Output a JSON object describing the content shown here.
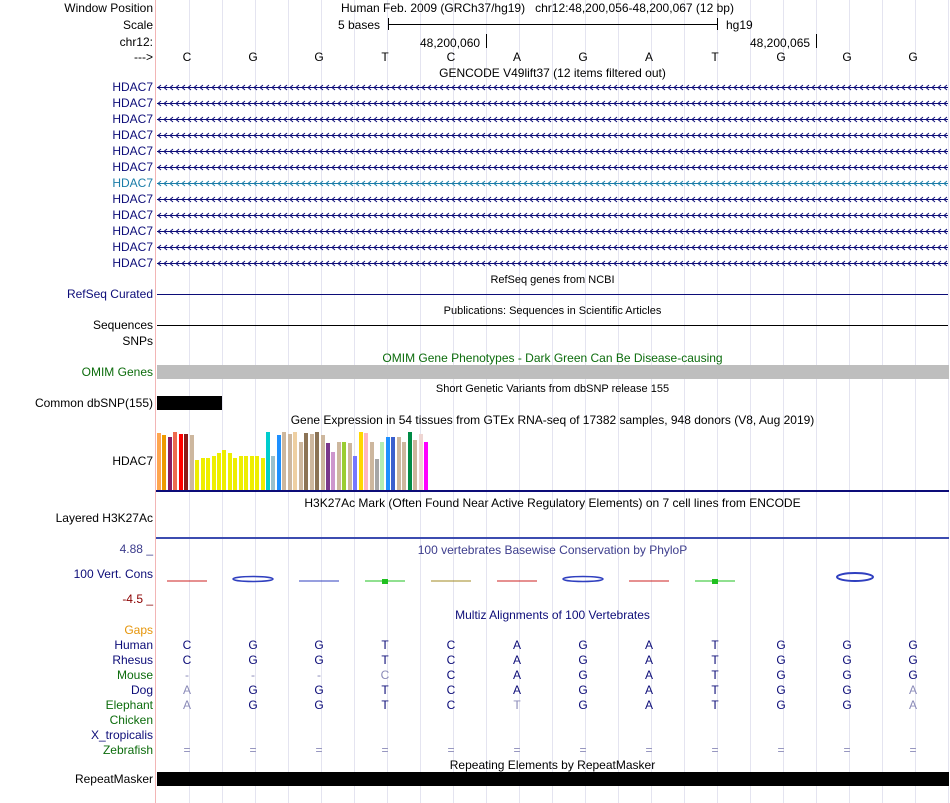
{
  "header": {
    "window_position_label": "Window Position",
    "assembly": "Human Feb. 2009 (GRCh37/hg19)",
    "position": "chr12:48,200,056-48,200,067 (12 bp)",
    "scale_label": "Scale",
    "scale_text": "5 bases",
    "scale_db": "hg19",
    "chrom_label": "chr12:",
    "coord_left": "48,200,060",
    "coord_right": "48,200,065",
    "strand_label": "--->",
    "bases": [
      "C",
      "G",
      "G",
      "T",
      "C",
      "A",
      "G",
      "A",
      "T",
      "G",
      "G",
      "G"
    ]
  },
  "gencode": {
    "title": "GENCODE V49lift37 (12 items filtered out)",
    "genes": [
      {
        "name": "HDAC7",
        "color": "#0c0c78"
      },
      {
        "name": "HDAC7",
        "color": "#0c0c78"
      },
      {
        "name": "HDAC7",
        "color": "#0c0c78"
      },
      {
        "name": "HDAC7",
        "color": "#0c0c78"
      },
      {
        "name": "HDAC7",
        "color": "#0c0c78"
      },
      {
        "name": "HDAC7",
        "color": "#0c0c78"
      },
      {
        "name": "HDAC7",
        "color": "#1a7ca8"
      },
      {
        "name": "HDAC7",
        "color": "#0c0c78"
      },
      {
        "name": "HDAC7",
        "color": "#0c0c78"
      },
      {
        "name": "HDAC7",
        "color": "#0c0c78"
      },
      {
        "name": "HDAC7",
        "color": "#0c0c78"
      },
      {
        "name": "HDAC7",
        "color": "#0c0c78"
      }
    ]
  },
  "refseq": {
    "title": "RefSeq genes from NCBI",
    "label": "RefSeq Curated"
  },
  "publications": {
    "title": "Publications: Sequences in Scientific Articles",
    "label": "Sequences"
  },
  "snps_label": "SNPs",
  "omim": {
    "title": "OMIM Gene Phenotypes - Dark Green Can Be Disease-causing",
    "label": "OMIM Genes"
  },
  "dbsnp": {
    "title": "Short Genetic Variants from dbSNP release 155",
    "label": "Common dbSNP(155)"
  },
  "gtex": {
    "title": "Gene Expression in 54 tissues from GTEx RNA-seq of 17382 samples, 948 donors (V8, Aug 2019)",
    "label": "HDAC7",
    "bars": [
      {
        "color": "#ffa54f",
        "v": 0.92
      },
      {
        "color": "#ee9a00",
        "v": 0.88
      },
      {
        "color": "#8b1c62",
        "v": 0.85
      },
      {
        "color": "#ee6a50",
        "v": 0.94
      },
      {
        "color": "#ff0000",
        "v": 0.9
      },
      {
        "color": "#8b1a1a",
        "v": 0.9
      },
      {
        "color": "#cdb79e",
        "v": 0.88
      },
      {
        "color": "#eeee00",
        "v": 0.48
      },
      {
        "color": "#eeee00",
        "v": 0.52
      },
      {
        "color": "#eeee00",
        "v": 0.52
      },
      {
        "color": "#eeee00",
        "v": 0.55
      },
      {
        "color": "#eeee00",
        "v": 0.6
      },
      {
        "color": "#eeee00",
        "v": 0.65
      },
      {
        "color": "#eeee00",
        "v": 0.6
      },
      {
        "color": "#eeee00",
        "v": 0.52
      },
      {
        "color": "#eeee00",
        "v": 0.55
      },
      {
        "color": "#eeee00",
        "v": 0.55
      },
      {
        "color": "#eeee00",
        "v": 0.55
      },
      {
        "color": "#eeee00",
        "v": 0.55
      },
      {
        "color": "#eeee00",
        "v": 0.52
      },
      {
        "color": "#00cdcd",
        "v": 0.94
      },
      {
        "color": "#9ac0cd",
        "v": 0.55
      },
      {
        "color": "#1e90ff",
        "v": 0.88
      },
      {
        "color": "#cdb79e",
        "v": 0.94
      },
      {
        "color": "#cdb79e",
        "v": 0.9
      },
      {
        "color": "#eecfa1",
        "v": 0.94
      },
      {
        "color": "#cdb79e",
        "v": 0.78
      },
      {
        "color": "#8b7355",
        "v": 0.92
      },
      {
        "color": "#cdb79e",
        "v": 0.9
      },
      {
        "color": "#8b7355",
        "v": 0.94
      },
      {
        "color": "#cdb79e",
        "v": 0.88
      },
      {
        "color": "#7a378b",
        "v": 0.76
      },
      {
        "color": "#cd96cd",
        "v": 0.62
      },
      {
        "color": "#cdb79e",
        "v": 0.78
      },
      {
        "color": "#9acd32",
        "v": 0.78
      },
      {
        "color": "#cdb79e",
        "v": 0.76
      },
      {
        "color": "#7777ff",
        "v": 0.55
      },
      {
        "color": "#ffd700",
        "v": 0.94
      },
      {
        "color": "#ffb6c1",
        "v": 0.92
      },
      {
        "color": "#cdb79e",
        "v": 0.78
      },
      {
        "color": "#a6a6a6",
        "v": 0.5
      },
      {
        "color": "#b4eeb4",
        "v": 0.78
      },
      {
        "color": "#1e90ff",
        "v": 0.85
      },
      {
        "color": "#3a5fcd",
        "v": 0.85
      },
      {
        "color": "#cdb79e",
        "v": 0.85
      },
      {
        "color": "#cdb79e",
        "v": 0.78
      },
      {
        "color": "#008b45",
        "v": 0.94
      },
      {
        "color": "#cdb79e",
        "v": 0.8
      },
      {
        "color": "#eed5d2",
        "v": 0.9
      },
      {
        "color": "#ff00ff",
        "v": 0.78
      }
    ]
  },
  "h3k27ac": {
    "title": "H3K27Ac Mark (Often Found Near Active Regulatory Elements) on 7 cell lines from ENCODE",
    "label": "Layered H3K27Ac"
  },
  "phylop": {
    "title": "100 vertebrates Basewise Conservation by PhyloP",
    "label": "100 Vert. Cons",
    "max": "4.88 _",
    "min": "-4.5 _"
  },
  "multiz": {
    "title": "Multiz Alignments of 100 Vertebrates",
    "gaps_label": "Gaps",
    "species": [
      {
        "name": "Human",
        "color": "#0c0c78",
        "bases": [
          "C",
          "G",
          "G",
          "T",
          "C",
          "A",
          "G",
          "A",
          "T",
          "G",
          "G",
          "G"
        ]
      },
      {
        "name": "Rhesus",
        "color": "#0c0c78",
        "bases": [
          "C",
          "G",
          "G",
          "T",
          "C",
          "A",
          "G",
          "A",
          "T",
          "G",
          "G",
          "G"
        ]
      },
      {
        "name": "Mouse",
        "color": "#0c6c0c",
        "bases": [
          "-",
          "-",
          "-",
          "C",
          "C",
          "A",
          "G",
          "A",
          "T",
          "G",
          "G",
          "G"
        ]
      },
      {
        "name": "Dog",
        "color": "#0c0c78",
        "bases": [
          "A",
          "G",
          "G",
          "T",
          "C",
          "A",
          "G",
          "A",
          "T",
          "G",
          "G",
          "A"
        ]
      },
      {
        "name": "Elephant",
        "color": "#0c6c0c",
        "bases": [
          "A",
          "G",
          "G",
          "T",
          "C",
          "T",
          "G",
          "A",
          "T",
          "G",
          "G",
          "A"
        ]
      },
      {
        "name": "Chicken",
        "color": "#0c6c0c",
        "bases": [
          "",
          "",
          "",
          "",
          "",
          "",
          "",
          "",
          "",
          "",
          "",
          ""
        ]
      },
      {
        "name": "X_tropicalis",
        "color": "#0c0c78",
        "bases": [
          "",
          "",
          "",
          "",
          "",
          "",
          "",
          "",
          "",
          "",
          "",
          ""
        ]
      },
      {
        "name": "Zebrafish",
        "color": "#0c6c0c",
        "bases": [
          "=",
          "=",
          "=",
          "=",
          "=",
          "=",
          "=",
          "=",
          "=",
          "=",
          "=",
          "="
        ]
      }
    ]
  },
  "repeatmasker": {
    "title": "Repeating Elements by RepeatMasker",
    "label": "RepeatMasker"
  }
}
